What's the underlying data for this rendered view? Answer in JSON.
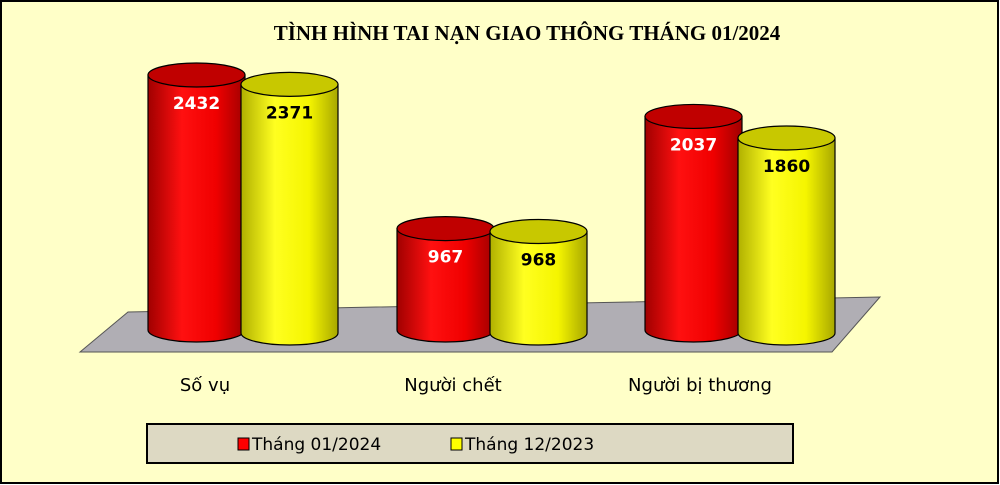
{
  "chart_data": {
    "type": "bar",
    "style": "3d-cylinder",
    "title": "TÌNH HÌNH TAI NẠN GIAO THÔNG THÁNG 01/2024",
    "categories": [
      "Số vụ",
      "Người chết",
      "Người bị thương"
    ],
    "series": [
      {
        "name": "Tháng 01/2024",
        "values": [
          2432,
          967,
          2037
        ],
        "color": "#ff0000",
        "label_color": "#ffffff"
      },
      {
        "name": "Tháng 12/2023",
        "values": [
          2371,
          968,
          1860
        ],
        "color": "#ffff00",
        "label_color": "#000000"
      }
    ],
    "ylim": [
      0,
      2432
    ],
    "grid": false,
    "legend": "bottom",
    "background": "#ffffc8",
    "floor_color": "#b0aeb4",
    "legend_background": "#ddd9c3"
  }
}
